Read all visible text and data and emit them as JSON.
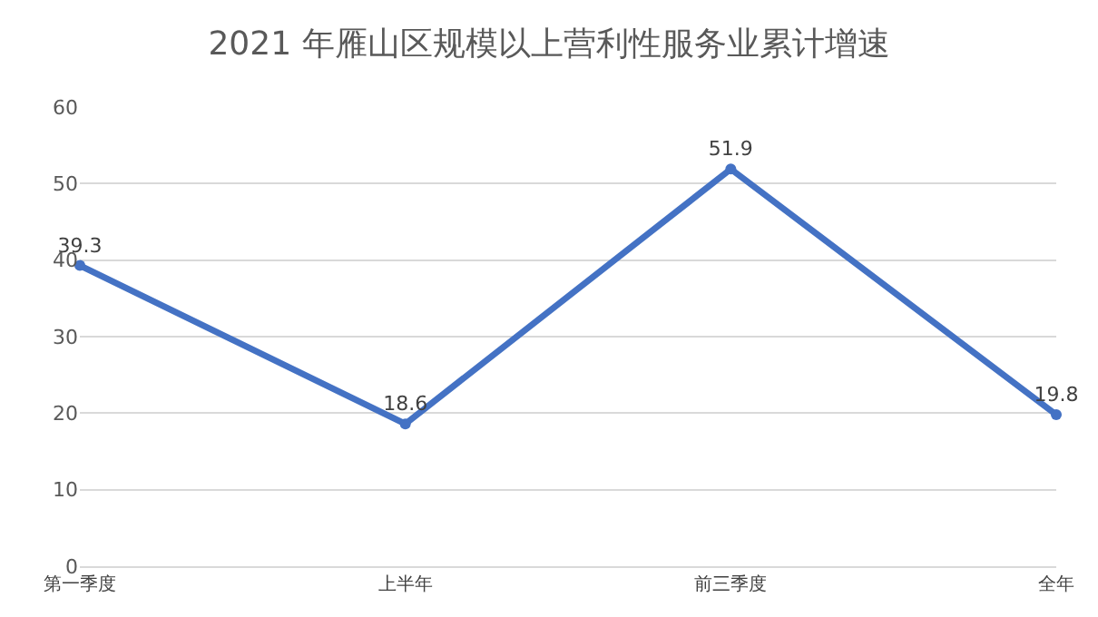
{
  "chart_data": {
    "type": "line",
    "title": "2021 年雁山区规模以上营利性服务业累计增速",
    "categories": [
      "第一季度",
      "上半年",
      "前三季度",
      "全年"
    ],
    "series": [
      {
        "color": "#4472c4",
        "values": [
          39.3,
          18.6,
          51.9,
          19.8
        ]
      }
    ],
    "ylim": [
      0,
      60
    ],
    "yticks": [
      0,
      10,
      20,
      30,
      40,
      50,
      60
    ],
    "grid": "y",
    "marker": "circle",
    "line_style": "solid",
    "data_labels": true
  }
}
